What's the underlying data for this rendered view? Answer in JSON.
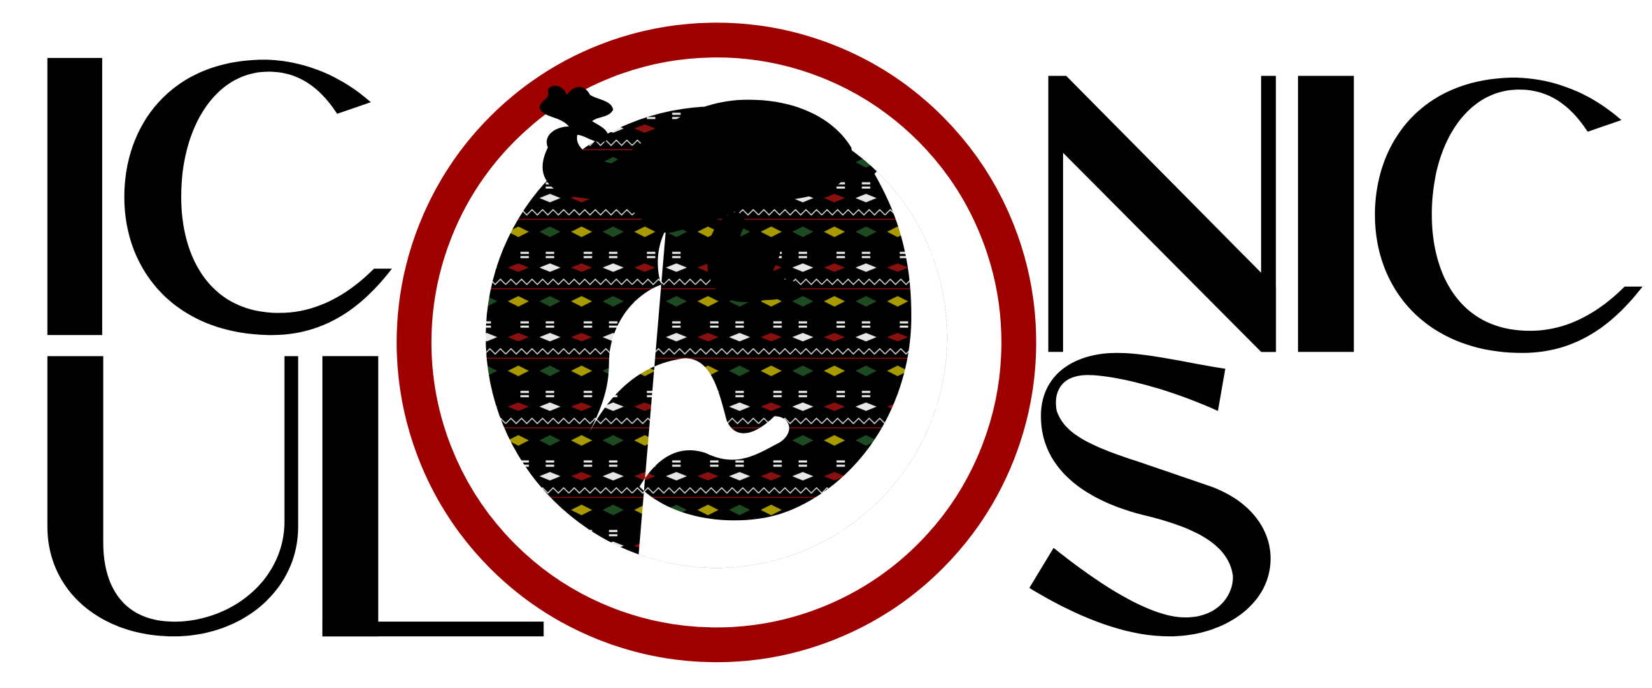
{
  "logo": {
    "line1": "ICONIC",
    "line2": "ULOS",
    "emblem": "gecko-in-ring",
    "colors": {
      "ring": "#9e0000",
      "lettering": "#000000",
      "background": "#ffffff",
      "pattern_red": "#8a1010",
      "pattern_yellow": "#a99a00",
      "pattern_green": "#1e4a22",
      "pattern_white": "#e8e8e8"
    }
  }
}
